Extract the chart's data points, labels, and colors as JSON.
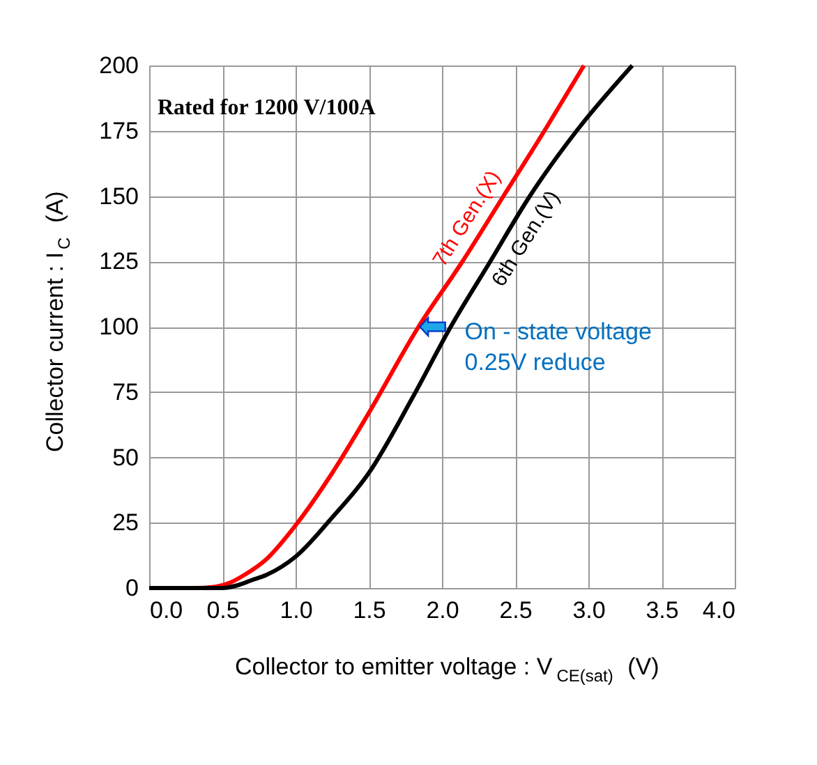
{
  "chart_data": {
    "type": "line",
    "xlabel": "Collector to emitter voltage : V$_{CE(sat)}$ (V)",
    "ylabel": "Collector current : I$_{C}$ (A)",
    "xlim": [
      0,
      4
    ],
    "xticks": [
      {
        "value": 0,
        "label": "0.0"
      },
      0.5,
      {
        "value": 1,
        "label": "1.0"
      },
      1.5,
      {
        "value": 2,
        "label": "2.0"
      },
      2.5,
      {
        "value": 3,
        "label": "3.0"
      },
      3.5,
      {
        "value": 4,
        "label": "4.0"
      }
    ],
    "ylim": [
      0,
      200
    ],
    "yticks": [
      0,
      25,
      50,
      75,
      100,
      125,
      150,
      175,
      200
    ],
    "grid": true,
    "legend": false,
    "line_style": "solid",
    "marker": "none",
    "series": [
      {
        "name": "7th Gen.(X)",
        "color": "#ff0000",
        "x": [
          0,
          0.3,
          0.45,
          0.55,
          0.65,
          0.8,
          1.0,
          1.25,
          1.5,
          1.84,
          2.14,
          2.42,
          2.7,
          2.97
        ],
        "values": [
          0,
          0,
          0.5,
          2,
          5,
          11,
          24,
          44,
          67,
          100,
          125,
          150,
          175,
          200
        ]
      },
      {
        "name": "6th Gen.(V)",
        "color": "#000000",
        "x": [
          0,
          0.5,
          0.6,
          0.7,
          0.8,
          1.0,
          1.25,
          1.5,
          1.8,
          2.06,
          2.33,
          2.6,
          2.92,
          3.3
        ],
        "values": [
          0,
          0,
          1,
          3,
          5,
          12,
          27,
          44,
          73,
          100,
          125,
          150,
          175,
          200
        ]
      }
    ],
    "annotations": [
      "Rated for 1200 V/100A",
      {
        "text": "On - state voltage\n0.25V reduce",
        "x": 1.85,
        "y": 100
      }
    ]
  }
}
